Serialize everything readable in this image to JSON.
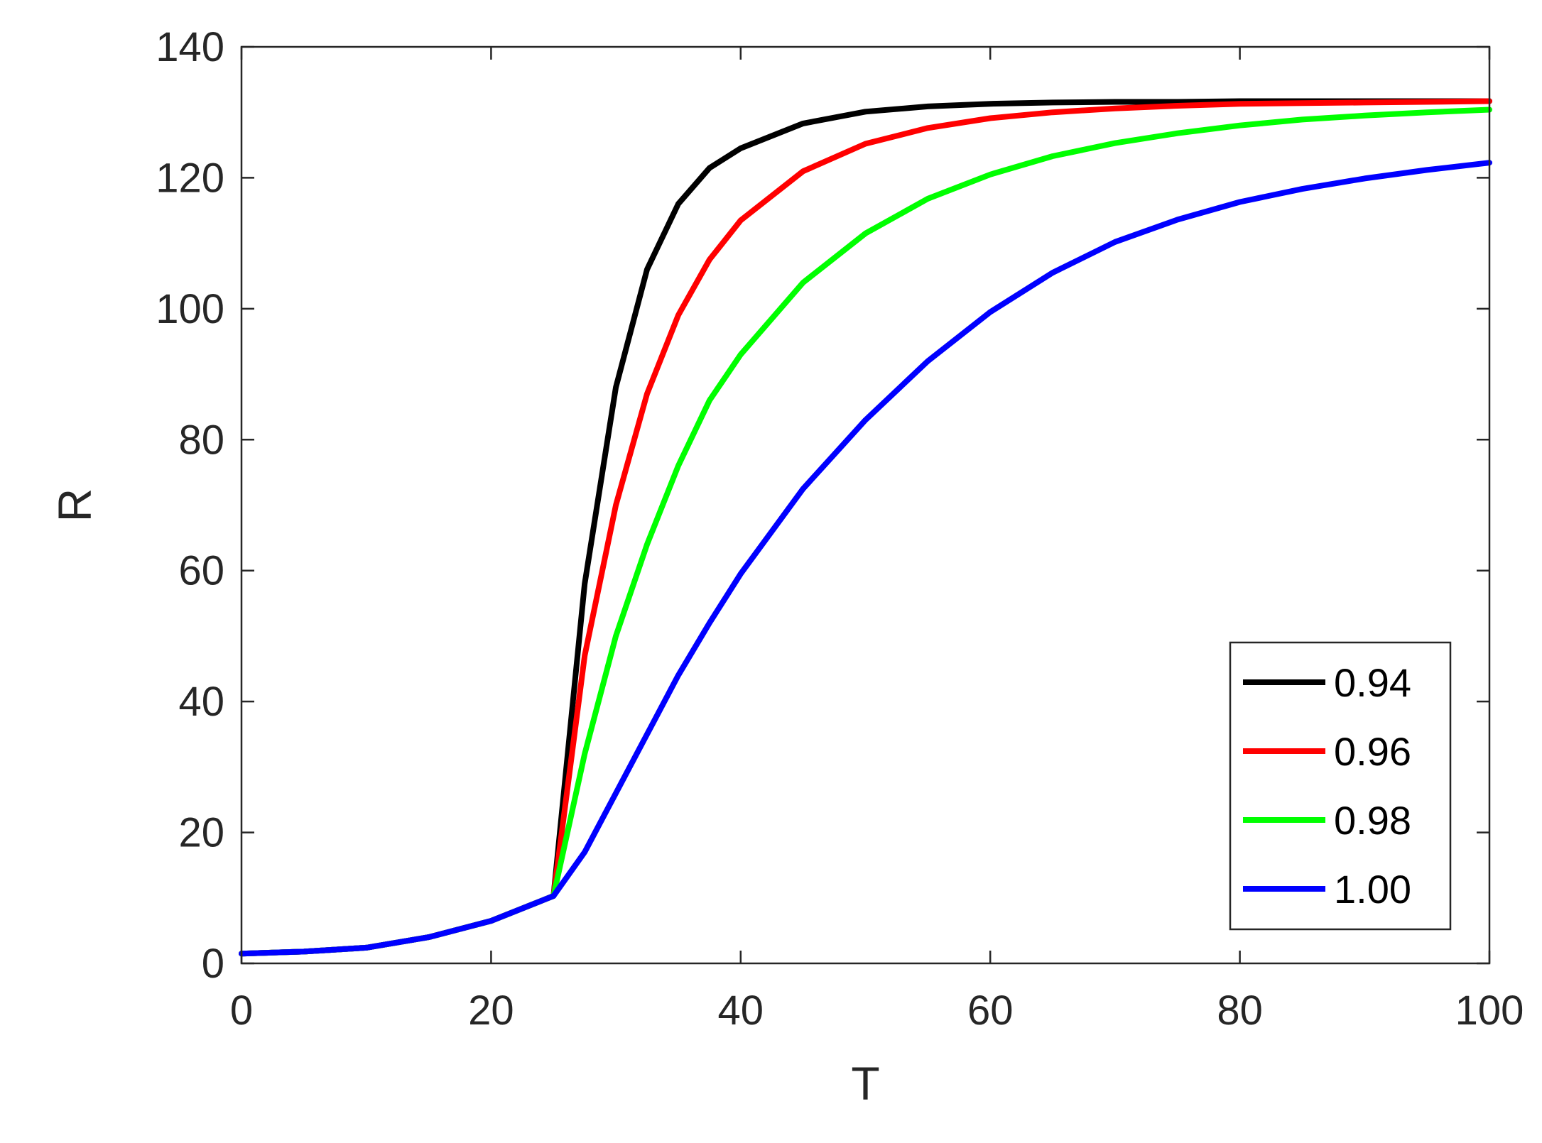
{
  "chart_data": {
    "type": "line",
    "title": "",
    "xlabel": "T",
    "ylabel": "R",
    "xlim": [
      0,
      100
    ],
    "ylim": [
      0,
      140
    ],
    "xticks": [
      0,
      20,
      40,
      60,
      80,
      100
    ],
    "yticks": [
      0,
      20,
      40,
      60,
      80,
      100,
      120,
      140
    ],
    "grid": false,
    "legend_position": "bottom-right",
    "x": [
      0,
      5,
      10,
      15,
      20,
      25,
      27.5,
      30,
      32.5,
      35,
      37.5,
      40,
      45,
      50,
      55,
      60,
      65,
      70,
      75,
      80,
      85,
      90,
      95,
      100
    ],
    "series": [
      {
        "name": "0.94",
        "color": "#000000",
        "values": [
          1.5,
          1.8,
          2.4,
          4.0,
          6.5,
          10.3,
          58,
          88,
          106,
          116,
          121.5,
          124.5,
          128.3,
          130.1,
          130.9,
          131.3,
          131.5,
          131.6,
          131.6,
          131.7,
          131.7,
          131.7,
          131.7,
          131.7
        ]
      },
      {
        "name": "0.96",
        "color": "#ff0000",
        "values": [
          1.5,
          1.8,
          2.4,
          4.0,
          6.5,
          10.3,
          47,
          70,
          87,
          99,
          107.5,
          113.5,
          121,
          125.2,
          127.6,
          129.1,
          130.0,
          130.6,
          131.0,
          131.3,
          131.4,
          131.5,
          131.6,
          131.7
        ]
      },
      {
        "name": "0.98",
        "color": "#00ff00",
        "values": [
          1.5,
          1.8,
          2.4,
          4.0,
          6.5,
          10.3,
          32,
          50,
          64,
          76,
          86,
          93,
          104,
          111.5,
          116.8,
          120.5,
          123.3,
          125.3,
          126.8,
          128,
          128.9,
          129.5,
          130,
          130.4
        ]
      },
      {
        "name": "1.00",
        "color": "#0000ff",
        "values": [
          1.5,
          1.8,
          2.4,
          4.0,
          6.5,
          10.3,
          17,
          26,
          35,
          44,
          52,
          59.5,
          72.5,
          83,
          92,
          99.5,
          105.5,
          110.2,
          113.6,
          116.3,
          118.3,
          119.9,
          121.2,
          122.3
        ]
      }
    ]
  }
}
